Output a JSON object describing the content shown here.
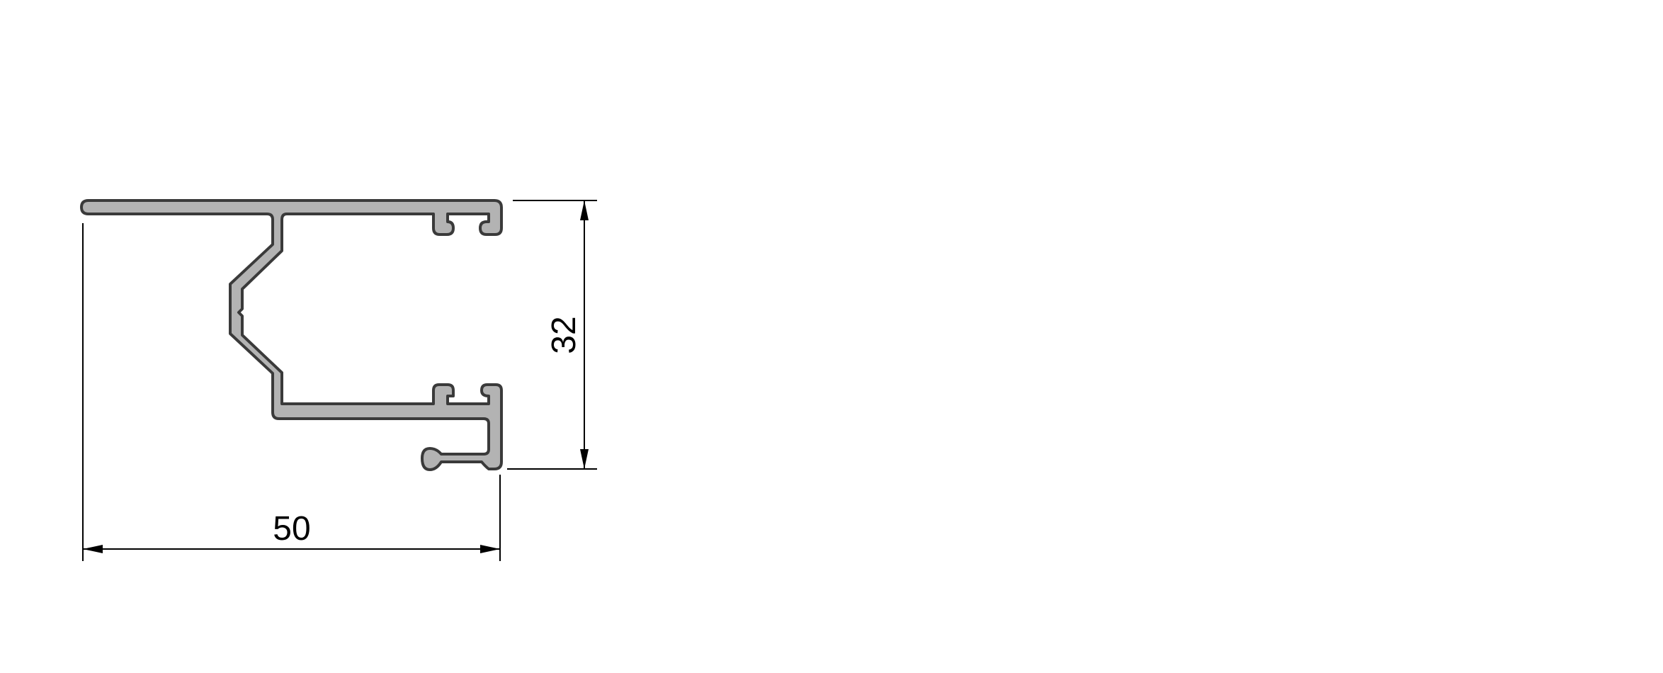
{
  "colors": {
    "profile_fill": "#b3b3b3",
    "profile_stroke": "#3a3a3a",
    "dimension_line": "#000000",
    "background": "#ffffff"
  },
  "dimensions": {
    "width_label": "50",
    "height_label": "32"
  }
}
